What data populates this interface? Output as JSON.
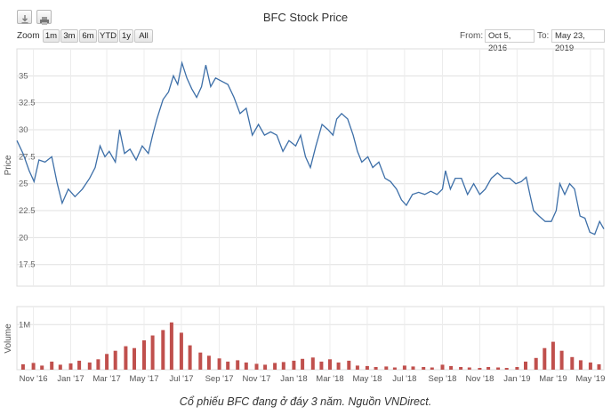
{
  "header": {
    "title": "BFC Stock Price",
    "zoom_label": "Zoom",
    "zoom_buttons": [
      "1m",
      "3m",
      "6m",
      "YTD",
      "1y",
      "All"
    ],
    "from_label": "From:",
    "from_value": "Oct 5, 2016",
    "to_label": "To:",
    "to_value": "May 23, 2019"
  },
  "icons": [
    "download-icon",
    "print-icon"
  ],
  "caption": "Cổ phiếu BFC đang ở đáy 3 năm. Nguồn VNDirect.",
  "colors": {
    "price_line": "#3d6fa8",
    "volume_bars": "#c0504d",
    "grid": "#e0e0e0"
  },
  "chart_data": [
    {
      "type": "line",
      "title": "BFC Stock Price",
      "ylabel": "Price",
      "ylim": [
        15.5,
        37.5
      ],
      "yticks": [
        17.5,
        20,
        22.5,
        25,
        27.5,
        30,
        32.5,
        35
      ],
      "xlim": [
        "2016-10-05",
        "2019-05-23"
      ],
      "xticks": [
        {
          "date": "2016-11-01",
          "label": "Nov '16"
        },
        {
          "date": "2017-01-01",
          "label": "Jan '17"
        },
        {
          "date": "2017-03-01",
          "label": "Mar '17"
        },
        {
          "date": "2017-05-01",
          "label": "May '17"
        },
        {
          "date": "2017-07-01",
          "label": "Jul '17"
        },
        {
          "date": "2017-09-01",
          "label": "Sep '17"
        },
        {
          "date": "2017-11-01",
          "label": "Nov '17"
        },
        {
          "date": "2018-01-01",
          "label": "Jan '18"
        },
        {
          "date": "2018-03-01",
          "label": "Mar '18"
        },
        {
          "date": "2018-05-01",
          "label": "May '18"
        },
        {
          "date": "2018-07-01",
          "label": "Jul '18"
        },
        {
          "date": "2018-09-01",
          "label": "Sep '18"
        },
        {
          "date": "2018-11-01",
          "label": "Nov '18"
        },
        {
          "date": "2019-01-01",
          "label": "Jan '19"
        },
        {
          "date": "2019-03-01",
          "label": "Mar '19"
        },
        {
          "date": "2019-05-01",
          "label": "May '19"
        }
      ],
      "grid": true,
      "series": [
        {
          "points": [
            [
              "2016-10-05",
              29.0
            ],
            [
              "2016-10-15",
              27.8
            ],
            [
              "2016-10-25",
              26.2
            ],
            [
              "2016-11-02",
              25.2
            ],
            [
              "2016-11-10",
              27.2
            ],
            [
              "2016-11-20",
              27.0
            ],
            [
              "2016-12-01",
              27.5
            ],
            [
              "2016-12-10",
              25.0
            ],
            [
              "2016-12-18",
              23.2
            ],
            [
              "2016-12-28",
              24.5
            ],
            [
              "2017-01-08",
              23.8
            ],
            [
              "2017-01-20",
              24.5
            ],
            [
              "2017-02-01",
              25.5
            ],
            [
              "2017-02-10",
              26.5
            ],
            [
              "2017-02-18",
              28.5
            ],
            [
              "2017-02-26",
              27.5
            ],
            [
              "2017-03-05",
              28.0
            ],
            [
              "2017-03-15",
              27.0
            ],
            [
              "2017-03-22",
              30.0
            ],
            [
              "2017-03-30",
              27.8
            ],
            [
              "2017-04-08",
              28.2
            ],
            [
              "2017-04-18",
              27.2
            ],
            [
              "2017-04-28",
              28.5
            ],
            [
              "2017-05-08",
              27.8
            ],
            [
              "2017-05-15",
              29.5
            ],
            [
              "2017-05-22",
              31.0
            ],
            [
              "2017-06-01",
              32.8
            ],
            [
              "2017-06-10",
              33.5
            ],
            [
              "2017-06-18",
              35.0
            ],
            [
              "2017-06-25",
              34.2
            ],
            [
              "2017-07-02",
              36.2
            ],
            [
              "2017-07-10",
              34.8
            ],
            [
              "2017-07-18",
              33.8
            ],
            [
              "2017-07-26",
              33.0
            ],
            [
              "2017-08-03",
              34.0
            ],
            [
              "2017-08-10",
              36.0
            ],
            [
              "2017-08-18",
              34.0
            ],
            [
              "2017-08-26",
              34.8
            ],
            [
              "2017-09-05",
              34.5
            ],
            [
              "2017-09-15",
              34.2
            ],
            [
              "2017-09-25",
              33.0
            ],
            [
              "2017-10-05",
              31.5
            ],
            [
              "2017-10-15",
              32.0
            ],
            [
              "2017-10-25",
              29.5
            ],
            [
              "2017-11-04",
              30.5
            ],
            [
              "2017-11-14",
              29.5
            ],
            [
              "2017-11-24",
              29.8
            ],
            [
              "2017-12-04",
              29.5
            ],
            [
              "2017-12-14",
              28.0
            ],
            [
              "2017-12-24",
              29.0
            ],
            [
              "2018-01-04",
              28.5
            ],
            [
              "2018-01-12",
              29.5
            ],
            [
              "2018-01-20",
              27.5
            ],
            [
              "2018-01-28",
              26.5
            ],
            [
              "2018-02-06",
              28.5
            ],
            [
              "2018-02-16",
              30.5
            ],
            [
              "2018-02-26",
              30.0
            ],
            [
              "2018-03-06",
              29.5
            ],
            [
              "2018-03-12",
              31.0
            ],
            [
              "2018-03-20",
              31.5
            ],
            [
              "2018-03-30",
              31.0
            ],
            [
              "2018-04-08",
              29.5
            ],
            [
              "2018-04-15",
              28.0
            ],
            [
              "2018-04-22",
              27.0
            ],
            [
              "2018-05-02",
              27.5
            ],
            [
              "2018-05-10",
              26.5
            ],
            [
              "2018-05-20",
              27.0
            ],
            [
              "2018-05-30",
              25.5
            ],
            [
              "2018-06-08",
              25.2
            ],
            [
              "2018-06-18",
              24.5
            ],
            [
              "2018-06-26",
              23.5
            ],
            [
              "2018-07-04",
              23.0
            ],
            [
              "2018-07-14",
              24.0
            ],
            [
              "2018-07-24",
              24.2
            ],
            [
              "2018-08-03",
              24.0
            ],
            [
              "2018-08-13",
              24.3
            ],
            [
              "2018-08-23",
              24.0
            ],
            [
              "2018-09-01",
              24.5
            ],
            [
              "2018-09-06",
              26.2
            ],
            [
              "2018-09-14",
              24.5
            ],
            [
              "2018-09-22",
              25.5
            ],
            [
              "2018-10-02",
              25.5
            ],
            [
              "2018-10-12",
              24.0
            ],
            [
              "2018-10-22",
              25.0
            ],
            [
              "2018-11-01",
              24.0
            ],
            [
              "2018-11-10",
              24.5
            ],
            [
              "2018-11-20",
              25.5
            ],
            [
              "2018-11-30",
              26.0
            ],
            [
              "2018-12-10",
              25.5
            ],
            [
              "2018-12-20",
              25.5
            ],
            [
              "2018-12-30",
              25.0
            ],
            [
              "2019-01-08",
              25.2
            ],
            [
              "2019-01-16",
              25.6
            ],
            [
              "2019-01-22",
              24.0
            ],
            [
              "2019-01-28",
              22.5
            ],
            [
              "2019-02-06",
              22.0
            ],
            [
              "2019-02-16",
              21.5
            ],
            [
              "2019-02-26",
              21.5
            ],
            [
              "2019-03-06",
              22.5
            ],
            [
              "2019-03-12",
              25.0
            ],
            [
              "2019-03-20",
              24.0
            ],
            [
              "2019-03-28",
              25.0
            ],
            [
              "2019-04-05",
              24.5
            ],
            [
              "2019-04-14",
              22.0
            ],
            [
              "2019-04-22",
              21.8
            ],
            [
              "2019-04-30",
              20.5
            ],
            [
              "2019-05-08",
              20.3
            ],
            [
              "2019-05-16",
              21.5
            ],
            [
              "2019-05-23",
              20.8
            ]
          ]
        }
      ]
    },
    {
      "type": "bar",
      "ylabel": "Volume",
      "ylim": [
        0,
        1400000
      ],
      "yticks": [
        {
          "value": 1000000,
          "label": "1M"
        }
      ],
      "grid": true,
      "series": [
        {
          "points": [
            [
              "2016-10-15",
              120000
            ],
            [
              "2016-11-01",
              150000
            ],
            [
              "2016-11-15",
              90000
            ],
            [
              "2016-12-01",
              180000
            ],
            [
              "2016-12-15",
              110000
            ],
            [
              "2017-01-01",
              140000
            ],
            [
              "2017-01-15",
              200000
            ],
            [
              "2017-02-01",
              160000
            ],
            [
              "2017-02-15",
              230000
            ],
            [
              "2017-03-01",
              350000
            ],
            [
              "2017-03-15",
              420000
            ],
            [
              "2017-04-01",
              520000
            ],
            [
              "2017-04-15",
              480000
            ],
            [
              "2017-05-01",
              650000
            ],
            [
              "2017-05-15",
              760000
            ],
            [
              "2017-06-01",
              880000
            ],
            [
              "2017-06-15",
              1050000
            ],
            [
              "2017-07-01",
              820000
            ],
            [
              "2017-07-15",
              540000
            ],
            [
              "2017-08-01",
              380000
            ],
            [
              "2017-08-15",
              310000
            ],
            [
              "2017-09-01",
              250000
            ],
            [
              "2017-09-15",
              180000
            ],
            [
              "2017-10-01",
              210000
            ],
            [
              "2017-10-15",
              160000
            ],
            [
              "2017-11-01",
              130000
            ],
            [
              "2017-11-15",
              110000
            ],
            [
              "2017-12-01",
              150000
            ],
            [
              "2017-12-15",
              170000
            ],
            [
              "2018-01-01",
              200000
            ],
            [
              "2018-01-15",
              240000
            ],
            [
              "2018-02-01",
              270000
            ],
            [
              "2018-02-15",
              180000
            ],
            [
              "2018-03-01",
              230000
            ],
            [
              "2018-03-15",
              160000
            ],
            [
              "2018-04-01",
              200000
            ],
            [
              "2018-04-15",
              90000
            ],
            [
              "2018-05-01",
              80000
            ],
            [
              "2018-05-15",
              60000
            ],
            [
              "2018-06-01",
              70000
            ],
            [
              "2018-06-15",
              50000
            ],
            [
              "2018-07-01",
              90000
            ],
            [
              "2018-07-15",
              70000
            ],
            [
              "2018-08-01",
              60000
            ],
            [
              "2018-08-15",
              50000
            ],
            [
              "2018-09-01",
              110000
            ],
            [
              "2018-09-15",
              80000
            ],
            [
              "2018-10-01",
              60000
            ],
            [
              "2018-10-15",
              50000
            ],
            [
              "2018-11-01",
              40000
            ],
            [
              "2018-11-15",
              60000
            ],
            [
              "2018-12-01",
              50000
            ],
            [
              "2018-12-15",
              40000
            ],
            [
              "2019-01-01",
              60000
            ],
            [
              "2019-01-15",
              180000
            ],
            [
              "2019-02-01",
              260000
            ],
            [
              "2019-02-15",
              480000
            ],
            [
              "2019-03-01",
              620000
            ],
            [
              "2019-03-15",
              420000
            ],
            [
              "2019-04-01",
              280000
            ],
            [
              "2019-04-15",
              210000
            ],
            [
              "2019-05-01",
              160000
            ],
            [
              "2019-05-15",
              120000
            ]
          ]
        }
      ]
    }
  ]
}
